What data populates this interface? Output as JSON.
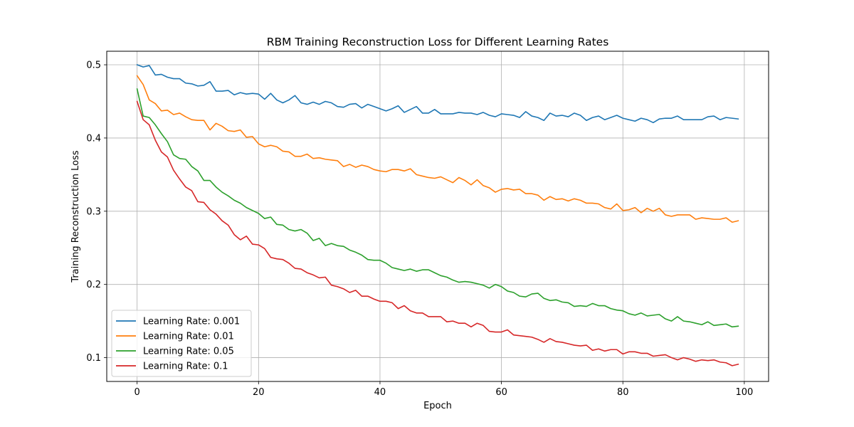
{
  "chart_data": {
    "type": "line",
    "title": "RBM Training Reconstruction Loss for Different Learning Rates",
    "xlabel": "Epoch",
    "ylabel": "Training Reconstruction Loss",
    "xlim": [
      -5,
      104
    ],
    "ylim": [
      0.0675,
      0.5185
    ],
    "xticks": [
      0,
      20,
      40,
      60,
      80,
      100
    ],
    "xtick_labels": [
      "0",
      "20",
      "40",
      "60",
      "80",
      "100"
    ],
    "yticks": [
      0.1,
      0.2,
      0.3,
      0.4,
      0.5
    ],
    "ytick_labels": [
      "0.1",
      "0.2",
      "0.3",
      "0.4",
      "0.5"
    ],
    "grid": true,
    "legend_position": "lower-left",
    "x": [
      0,
      1,
      2,
      3,
      4,
      5,
      6,
      7,
      8,
      9,
      10,
      11,
      12,
      13,
      14,
      15,
      16,
      17,
      18,
      19,
      20,
      21,
      22,
      23,
      24,
      25,
      26,
      27,
      28,
      29,
      30,
      31,
      32,
      33,
      34,
      35,
      36,
      37,
      38,
      39,
      40,
      41,
      42,
      43,
      44,
      45,
      46,
      47,
      48,
      49,
      50,
      51,
      52,
      53,
      54,
      55,
      56,
      57,
      58,
      59,
      60,
      61,
      62,
      63,
      64,
      65,
      66,
      67,
      68,
      69,
      70,
      71,
      72,
      73,
      74,
      75,
      76,
      77,
      78,
      79,
      80,
      81,
      82,
      83,
      84,
      85,
      86,
      87,
      88,
      89,
      90,
      91,
      92,
      93,
      94,
      95,
      96,
      97,
      98,
      99
    ],
    "series": [
      {
        "name": "Learning Rate: 0.001",
        "color": "#1f77b4",
        "values": [
          0.5,
          0.497,
          0.499,
          0.486,
          0.487,
          0.483,
          0.481,
          0.481,
          0.475,
          0.474,
          0.471,
          0.472,
          0.477,
          0.464,
          0.464,
          0.465,
          0.459,
          0.462,
          0.46,
          0.461,
          0.46,
          0.453,
          0.461,
          0.452,
          0.448,
          0.452,
          0.458,
          0.448,
          0.446,
          0.449,
          0.446,
          0.45,
          0.448,
          0.443,
          0.442,
          0.446,
          0.447,
          0.441,
          0.446,
          0.443,
          0.44,
          0.437,
          0.44,
          0.444,
          0.435,
          0.439,
          0.443,
          0.434,
          0.434,
          0.439,
          0.433,
          0.433,
          0.433,
          0.435,
          0.434,
          0.434,
          0.432,
          0.435,
          0.431,
          0.429,
          0.433,
          0.432,
          0.431,
          0.428,
          0.436,
          0.43,
          0.428,
          0.424,
          0.434,
          0.43,
          0.431,
          0.429,
          0.434,
          0.431,
          0.424,
          0.428,
          0.43,
          0.425,
          0.428,
          0.431,
          0.427,
          0.425,
          0.423,
          0.427,
          0.425,
          0.421,
          0.426,
          0.427,
          0.427,
          0.43,
          0.425,
          0.425,
          0.425,
          0.425,
          0.429,
          0.43,
          0.425,
          0.428,
          0.427,
          0.426
        ]
      },
      {
        "name": "Learning Rate: 0.01",
        "color": "#ff7f0e",
        "values": [
          0.485,
          0.473,
          0.452,
          0.447,
          0.437,
          0.438,
          0.432,
          0.434,
          0.429,
          0.425,
          0.424,
          0.424,
          0.411,
          0.42,
          0.416,
          0.41,
          0.409,
          0.411,
          0.401,
          0.402,
          0.392,
          0.388,
          0.39,
          0.388,
          0.382,
          0.381,
          0.375,
          0.375,
          0.378,
          0.372,
          0.373,
          0.371,
          0.37,
          0.369,
          0.361,
          0.364,
          0.36,
          0.363,
          0.361,
          0.357,
          0.355,
          0.354,
          0.357,
          0.357,
          0.355,
          0.358,
          0.35,
          0.348,
          0.346,
          0.345,
          0.347,
          0.343,
          0.339,
          0.346,
          0.342,
          0.336,
          0.343,
          0.335,
          0.332,
          0.326,
          0.33,
          0.331,
          0.329,
          0.33,
          0.324,
          0.324,
          0.322,
          0.315,
          0.32,
          0.316,
          0.317,
          0.314,
          0.317,
          0.315,
          0.311,
          0.311,
          0.31,
          0.305,
          0.303,
          0.31,
          0.301,
          0.302,
          0.305,
          0.298,
          0.304,
          0.3,
          0.304,
          0.295,
          0.293,
          0.295,
          0.295,
          0.295,
          0.289,
          0.291,
          0.29,
          0.289,
          0.289,
          0.291,
          0.285,
          0.287
        ]
      },
      {
        "name": "Learning Rate: 0.05",
        "color": "#2ca02c",
        "values": [
          0.467,
          0.43,
          0.428,
          0.418,
          0.406,
          0.395,
          0.377,
          0.372,
          0.371,
          0.361,
          0.355,
          0.342,
          0.342,
          0.333,
          0.326,
          0.321,
          0.315,
          0.311,
          0.305,
          0.301,
          0.297,
          0.29,
          0.292,
          0.282,
          0.281,
          0.275,
          0.273,
          0.275,
          0.27,
          0.26,
          0.263,
          0.253,
          0.256,
          0.253,
          0.252,
          0.247,
          0.244,
          0.24,
          0.234,
          0.233,
          0.233,
          0.229,
          0.223,
          0.221,
          0.219,
          0.221,
          0.218,
          0.22,
          0.22,
          0.216,
          0.212,
          0.21,
          0.206,
          0.203,
          0.204,
          0.203,
          0.201,
          0.199,
          0.195,
          0.2,
          0.197,
          0.191,
          0.189,
          0.184,
          0.183,
          0.187,
          0.188,
          0.181,
          0.178,
          0.179,
          0.176,
          0.175,
          0.17,
          0.171,
          0.17,
          0.174,
          0.171,
          0.171,
          0.167,
          0.165,
          0.164,
          0.16,
          0.158,
          0.161,
          0.157,
          0.158,
          0.159,
          0.153,
          0.15,
          0.156,
          0.15,
          0.149,
          0.147,
          0.145,
          0.149,
          0.144,
          0.145,
          0.146,
          0.142,
          0.143
        ]
      },
      {
        "name": "Learning Rate: 0.1",
        "color": "#d62728",
        "values": [
          0.45,
          0.425,
          0.418,
          0.397,
          0.381,
          0.374,
          0.356,
          0.344,
          0.333,
          0.328,
          0.313,
          0.312,
          0.302,
          0.296,
          0.287,
          0.281,
          0.268,
          0.261,
          0.266,
          0.255,
          0.254,
          0.249,
          0.237,
          0.235,
          0.234,
          0.229,
          0.222,
          0.221,
          0.216,
          0.213,
          0.209,
          0.21,
          0.199,
          0.197,
          0.194,
          0.189,
          0.192,
          0.184,
          0.184,
          0.18,
          0.177,
          0.177,
          0.175,
          0.167,
          0.171,
          0.164,
          0.161,
          0.161,
          0.156,
          0.156,
          0.156,
          0.149,
          0.15,
          0.147,
          0.147,
          0.142,
          0.147,
          0.144,
          0.136,
          0.135,
          0.135,
          0.138,
          0.131,
          0.13,
          0.129,
          0.128,
          0.125,
          0.121,
          0.126,
          0.122,
          0.121,
          0.119,
          0.117,
          0.116,
          0.117,
          0.11,
          0.112,
          0.109,
          0.111,
          0.111,
          0.105,
          0.108,
          0.108,
          0.106,
          0.106,
          0.102,
          0.103,
          0.104,
          0.1,
          0.097,
          0.1,
          0.098,
          0.095,
          0.097,
          0.096,
          0.097,
          0.094,
          0.093,
          0.089,
          0.091
        ]
      }
    ]
  }
}
